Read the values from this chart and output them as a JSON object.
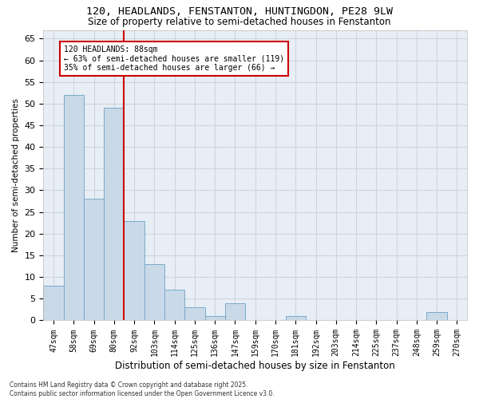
{
  "title_line1": "120, HEADLANDS, FENSTANTON, HUNTINGDON, PE28 9LW",
  "title_line2": "Size of property relative to semi-detached houses in Fenstanton",
  "xlabel": "Distribution of semi-detached houses by size in Fenstanton",
  "ylabel": "Number of semi-detached properties",
  "categories": [
    "47sqm",
    "58sqm",
    "69sqm",
    "80sqm",
    "92sqm",
    "103sqm",
    "114sqm",
    "125sqm",
    "136sqm",
    "147sqm",
    "159sqm",
    "170sqm",
    "181sqm",
    "192sqm",
    "203sqm",
    "214sqm",
    "225sqm",
    "237sqm",
    "248sqm",
    "259sqm",
    "270sqm"
  ],
  "values": [
    8,
    52,
    28,
    49,
    23,
    13,
    7,
    3,
    1,
    4,
    0,
    0,
    1,
    0,
    0,
    0,
    0,
    0,
    0,
    2,
    0
  ],
  "bar_color": "#c9d9e8",
  "bar_edge_color": "#7baac8",
  "red_line_index": 4,
  "annotation_title": "120 HEADLANDS: 88sqm",
  "annotation_line1": "← 63% of semi-detached houses are smaller (119)",
  "annotation_line2": "35% of semi-detached houses are larger (66) →",
  "annotation_box_color": "#ffffff",
  "annotation_box_edge_color": "#cc0000",
  "red_line_color": "#cc0000",
  "ylim_max": 67,
  "yticks": [
    0,
    5,
    10,
    15,
    20,
    25,
    30,
    35,
    40,
    45,
    50,
    55,
    60,
    65
  ],
  "grid_color": "#ccd5e0",
  "background_color": "#e8eef5",
  "footer_line1": "Contains HM Land Registry data © Crown copyright and database right 2025.",
  "footer_line2": "Contains public sector information licensed under the Open Government Licence v3.0."
}
